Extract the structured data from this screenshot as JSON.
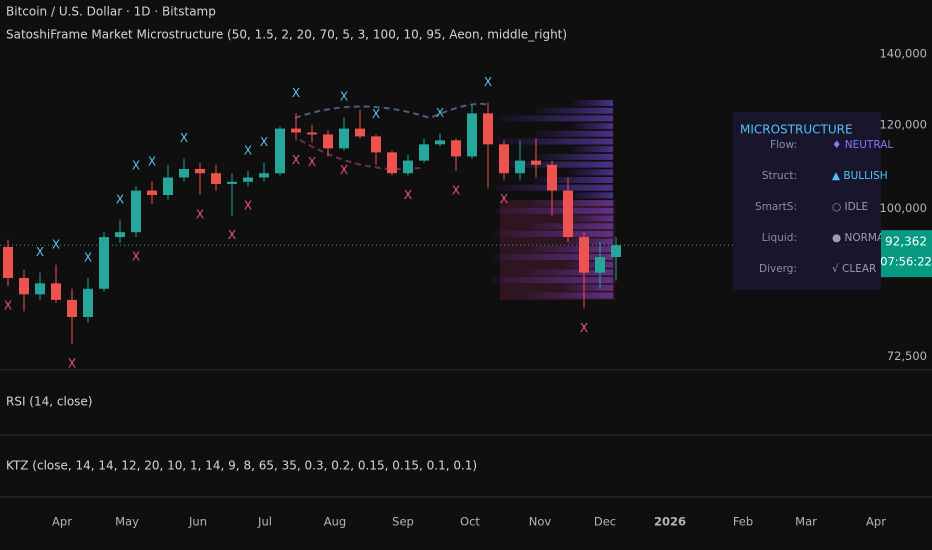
{
  "header": {
    "symbol": "Bitcoin / U.S. Dollar · 1D · Bitstamp",
    "indicator": "SatoshiFrame Market Microstructure  (50, 1.5, 2, 20, 70, 5, 3, 100, 10, 95, Aeon, middle_right)"
  },
  "chart_data": {
    "type": "candlestick",
    "log_scale": true,
    "grid": false,
    "ylim": [
      70400,
      150700
    ],
    "yticks": [
      {
        "value": 72500,
        "label": "72,500"
      },
      {
        "value": 100000,
        "label": "100,000"
      },
      {
        "value": 120000,
        "label": "120,000"
      },
      {
        "value": 140000,
        "label": "140,000"
      }
    ],
    "up_color": "#26a69a",
    "down_color": "#ef5350",
    "open": [
      92000,
      86000,
      83000,
      85000,
      82000,
      79000,
      84000,
      94000,
      95000,
      104000,
      103000,
      107000,
      109000,
      108000,
      105500,
      106000,
      107000,
      108000,
      119000,
      118000,
      117500,
      114000,
      119000,
      117000,
      113000,
      108000,
      111000,
      115000,
      116000,
      112000,
      123000,
      115000,
      108000,
      111000,
      110000,
      104000,
      94000,
      87000,
      90000
    ],
    "high": [
      93500,
      87500,
      87000,
      88500,
      84000,
      86000,
      95000,
      97500,
      105000,
      106000,
      110000,
      111500,
      110500,
      110000,
      108000,
      108500,
      110500,
      119500,
      123000,
      120000,
      118500,
      122000,
      124000,
      117500,
      113500,
      112500,
      116500,
      117800,
      116500,
      125500,
      126000,
      116000,
      116000,
      116500,
      111000,
      107000,
      95000,
      93000,
      94000
    ],
    "low": [
      84500,
      80000,
      82000,
      81500,
      74500,
      78000,
      83500,
      92800,
      94000,
      101000,
      102000,
      106000,
      103000,
      104000,
      98500,
      105000,
      106000,
      107500,
      116000,
      115500,
      112000,
      113500,
      116500,
      110000,
      107500,
      107500,
      110500,
      114500,
      108500,
      111500,
      104500,
      106500,
      106500,
      107000,
      98500,
      93000,
      80500,
      84000,
      85500
    ],
    "close": [
      86000,
      83000,
      85000,
      82000,
      79000,
      84000,
      94000,
      95000,
      104000,
      103000,
      107000,
      109000,
      108000,
      105500,
      106000,
      107000,
      108000,
      119000,
      118000,
      117500,
      114000,
      119000,
      117000,
      113000,
      108000,
      111000,
      115000,
      116000,
      112000,
      123000,
      115000,
      108000,
      111000,
      110000,
      104000,
      94000,
      87000,
      90000,
      92362
    ],
    "last_price": {
      "value": 92362,
      "label": "92,362"
    },
    "countdown": "07:56:22",
    "markers": {
      "label": "X",
      "high_color": "#5bc0eb",
      "low_color": "#f0508a",
      "high_candles": [
        2,
        3,
        5,
        7,
        8,
        9,
        11,
        15,
        16,
        18,
        21,
        23,
        27,
        30
      ],
      "low_candles": [
        0,
        4,
        8,
        12,
        14,
        15,
        18,
        19,
        21,
        25,
        28,
        31,
        36
      ]
    }
  },
  "x_axis": {
    "labels": [
      "Apr",
      "May",
      "Jun",
      "Jul",
      "Aug",
      "Sep",
      "Oct",
      "Nov",
      "Dec",
      "2026",
      "Feb",
      "Mar",
      "Apr"
    ]
  },
  "panel": {
    "title": "MICROSTRUCTURE",
    "rows": [
      [
        "Flow:",
        "♦ NEUTRAL"
      ],
      [
        "Struct:",
        "▲ BULLISH"
      ],
      [
        "SmartS:",
        "○ IDLE"
      ],
      [
        "Liquid:",
        "● NORMAL"
      ],
      [
        "Diverg:",
        "√ CLEAR"
      ]
    ]
  },
  "panes": [
    "RSI (14, close)",
    "KTZ (close, 14, 14, 12, 20, 10, 1, 14, 9, 8, 65, 35, 0.3, 0.2, 0.15, 0.15, 0.1, 0.1)"
  ]
}
